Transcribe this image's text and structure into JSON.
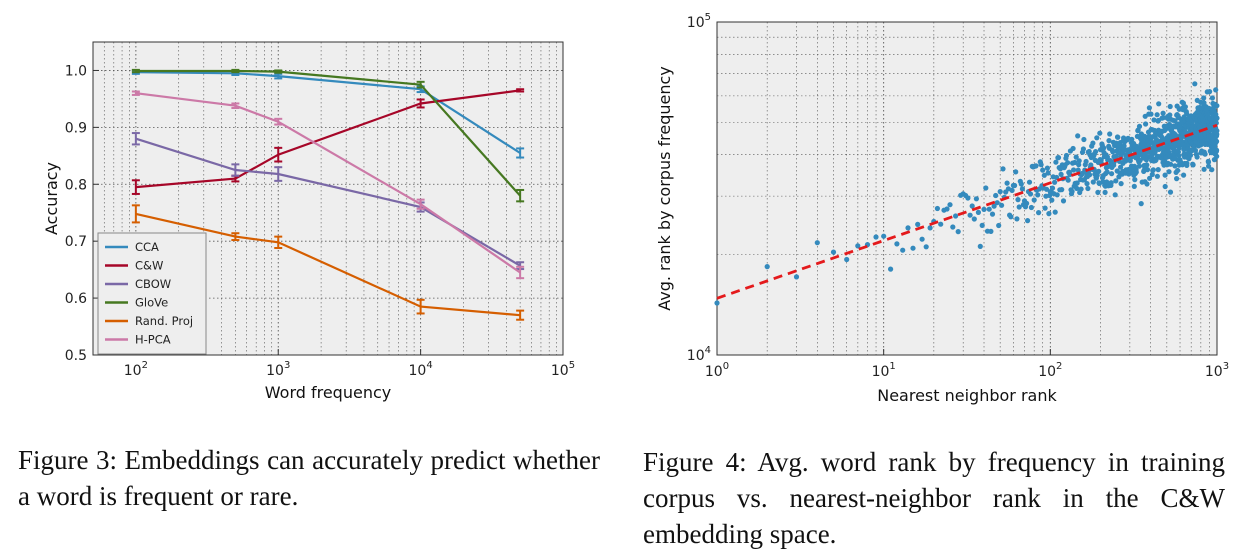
{
  "chart_data": [
    {
      "type": "line",
      "xscale": "log",
      "xlim": [
        50,
        100000
      ],
      "ylim": [
        0.5,
        1.05
      ],
      "xlabel": "Word frequency",
      "ylabel": "Accuracy",
      "xticks": [
        "10",
        "10",
        "10",
        "10"
      ],
      "xtick_exponents": [
        "2",
        "3",
        "4",
        "5"
      ],
      "yticks": [
        "0.5",
        "0.6",
        "0.7",
        "0.8",
        "0.9",
        "1.0"
      ],
      "legend_position": "lower-left",
      "x": [
        100,
        500,
        1000,
        10000,
        50000
      ],
      "series": [
        {
          "name": "CCA",
          "color": "#348abd",
          "values": [
            0.997,
            0.995,
            0.99,
            0.967,
            0.855
          ],
          "errors": [
            0.003,
            0.003,
            0.004,
            0.005,
            0.008
          ]
        },
        {
          "name": "C&W",
          "color": "#a60628",
          "values": [
            0.795,
            0.81,
            0.852,
            0.942,
            0.965
          ],
          "errors": [
            0.012,
            0.005,
            0.012,
            0.007,
            0.002
          ]
        },
        {
          "name": "CBOW",
          "color": "#7a68a6",
          "values": [
            0.88,
            0.825,
            0.818,
            0.76,
            0.657
          ],
          "errors": [
            0.01,
            0.01,
            0.012,
            0.008,
            0.006
          ]
        },
        {
          "name": "GloVe",
          "color": "#467821",
          "values": [
            0.999,
            0.999,
            0.998,
            0.975,
            0.78
          ],
          "errors": [
            0.002,
            0.002,
            0.002,
            0.005,
            0.01
          ]
        },
        {
          "name": "Rand. Proj",
          "color": "#d55e00",
          "values": [
            0.748,
            0.708,
            0.698,
            0.585,
            0.57
          ],
          "errors": [
            0.015,
            0.006,
            0.01,
            0.012,
            0.008
          ]
        },
        {
          "name": "H-PCA",
          "color": "#cc79a7",
          "values": [
            0.96,
            0.938,
            0.91,
            0.765,
            0.645
          ],
          "errors": [
            0.003,
            0.004,
            0.005,
            0.008,
            0.01
          ]
        }
      ]
    },
    {
      "type": "scatter",
      "xscale": "log",
      "yscale": "log",
      "xlim": [
        1,
        1000
      ],
      "ylim": [
        10000,
        100000
      ],
      "xlabel": "Nearest neighbor rank",
      "ylabel": "Avg. rank by corpus frequency",
      "xticks": [
        "10",
        "10",
        "10",
        "10"
      ],
      "xtick_exponents": [
        "0",
        "1",
        "2",
        "3"
      ],
      "yticks": [
        "10",
        "10"
      ],
      "ytick_exponents": [
        "4",
        "5"
      ],
      "point_color": "#348abd",
      "fit_color": "#e41a1c",
      "fit_line": {
        "x": [
          1,
          1000
        ],
        "y": [
          14800,
          49000
        ]
      },
      "point_count": 1000,
      "noise_sigma_log10": 0.045
    }
  ],
  "captions": {
    "fig3": "Figure 3:  Embeddings can accurately predict whether a word is frequent or rare.",
    "fig4": "Figure 4: Avg. word rank by frequency in training corpus vs. nearest-neighbor rank in the C&W embedding space."
  }
}
